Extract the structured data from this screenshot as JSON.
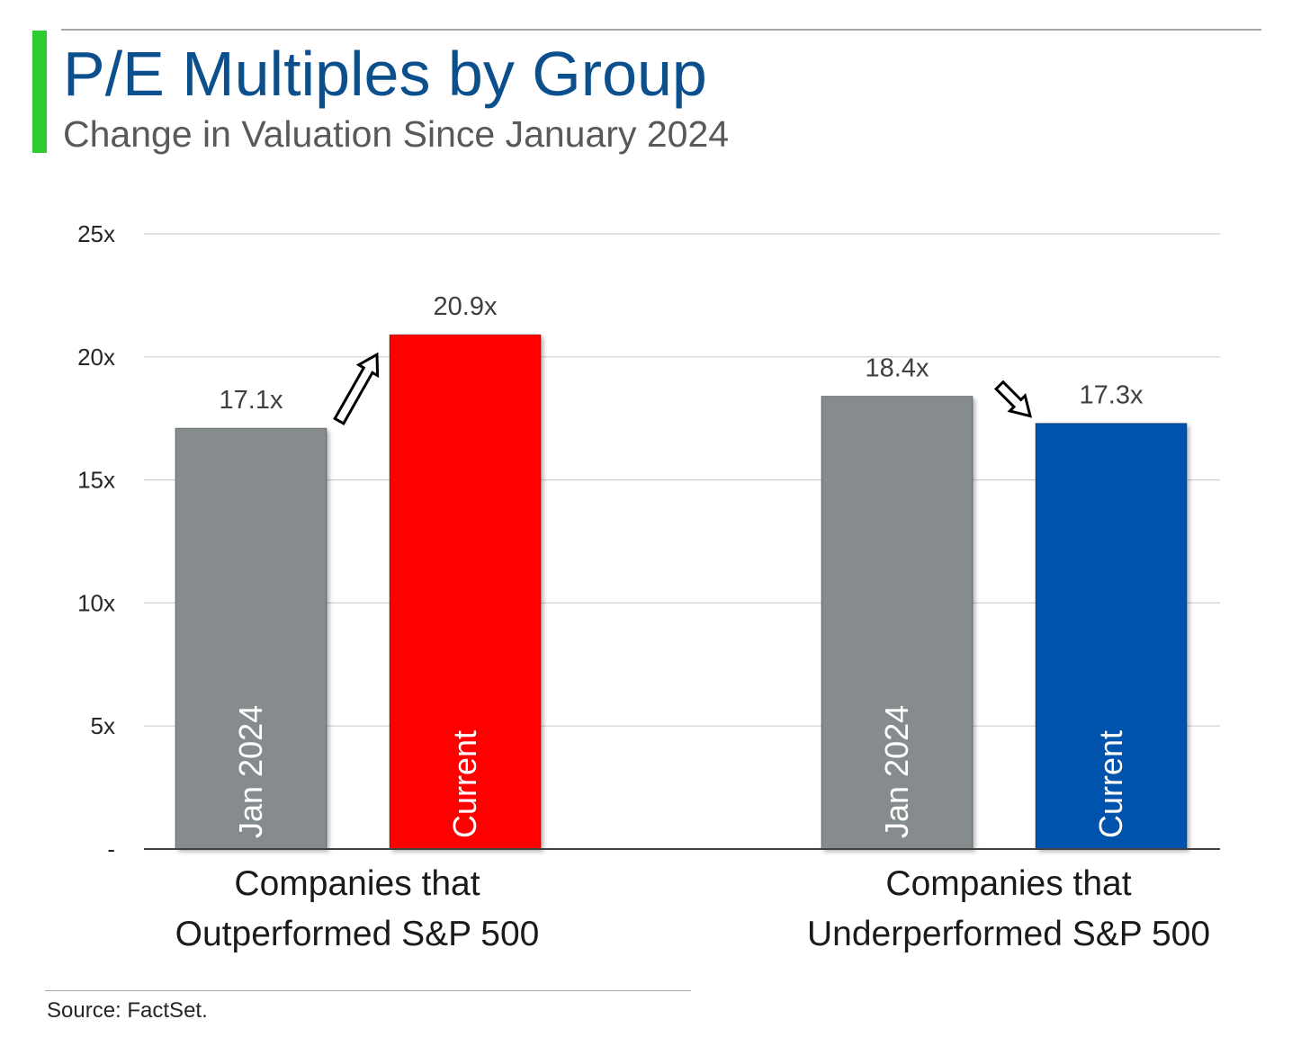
{
  "header": {
    "title": "P/E Multiples by Group",
    "subtitle": "Change in Valuation Since January 2024"
  },
  "footer": {
    "source": "Source: FactSet."
  },
  "colors": {
    "title": "#0b4f8c",
    "accent": "#2ecc2e",
    "jan_bar": "#868c8e",
    "current_outperform": "#ff0000",
    "current_underperform": "#0052ac",
    "gridline": "#d0d0d0",
    "axis_text": "#262626"
  },
  "chart_data": {
    "type": "bar",
    "title": "P/E Multiples by Group",
    "subtitle": "Change in Valuation Since January 2024",
    "ylim": [
      0,
      25
    ],
    "yticks": [
      {
        "value": 0,
        "label": "-"
      },
      {
        "value": 5,
        "label": "5x"
      },
      {
        "value": 10,
        "label": "10x"
      },
      {
        "value": 15,
        "label": "15x"
      },
      {
        "value": 20,
        "label": "20x"
      },
      {
        "value": 25,
        "label": "25x"
      }
    ],
    "grid": true,
    "groups": [
      {
        "name_lines": [
          "Companies that",
          "Outperformed S&P 500"
        ],
        "trend": "up",
        "bars": [
          {
            "label": "Jan 2024",
            "value": 17.1,
            "value_label": "17.1x",
            "color": "#868c8e"
          },
          {
            "label": "Current",
            "value": 20.9,
            "value_label": "20.9x",
            "color": "#ff0000"
          }
        ]
      },
      {
        "name_lines": [
          "Companies that",
          "Underperformed S&P 500"
        ],
        "trend": "down",
        "bars": [
          {
            "label": "Jan 2024",
            "value": 18.4,
            "value_label": "18.4x",
            "color": "#868c8e"
          },
          {
            "label": "Current",
            "value": 17.3,
            "value_label": "17.3x",
            "color": "#0052ac"
          }
        ]
      }
    ]
  }
}
